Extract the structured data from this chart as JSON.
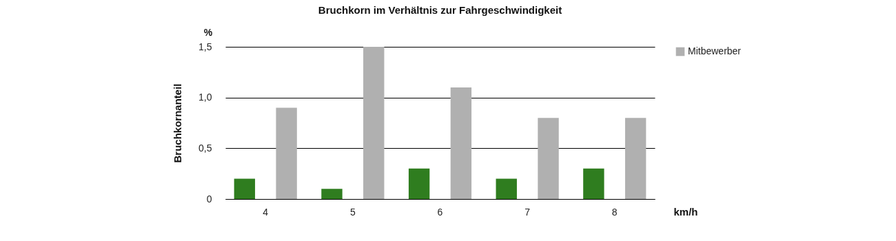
{
  "chart_data": {
    "type": "bar",
    "title": "Bruchkorn im Verhältnis zur Fahrgeschwindigkeit",
    "xlabel": "km/h",
    "ylabel": "Bruchkornanteil",
    "annotations": [
      "%"
    ],
    "categories": [
      "4",
      "5",
      "6",
      "7",
      "8"
    ],
    "series": [
      {
        "color": "#2f7d1f",
        "values": [
          0.2,
          0.1,
          0.3,
          0.2,
          0.3
        ]
      },
      {
        "name": "Mitbewerber",
        "color": "#b0b0b0",
        "values": [
          0.9,
          1.5,
          1.1,
          0.8,
          0.8
        ]
      }
    ],
    "ylim": [
      0,
      1.5
    ],
    "yticks": [
      0,
      {
        "value": 0.5,
        "label": "0,5"
      },
      {
        "value": 1,
        "label": "1,0"
      },
      {
        "value": 1.5,
        "label": "1,5"
      }
    ],
    "grid": "y",
    "legend": "top right"
  }
}
